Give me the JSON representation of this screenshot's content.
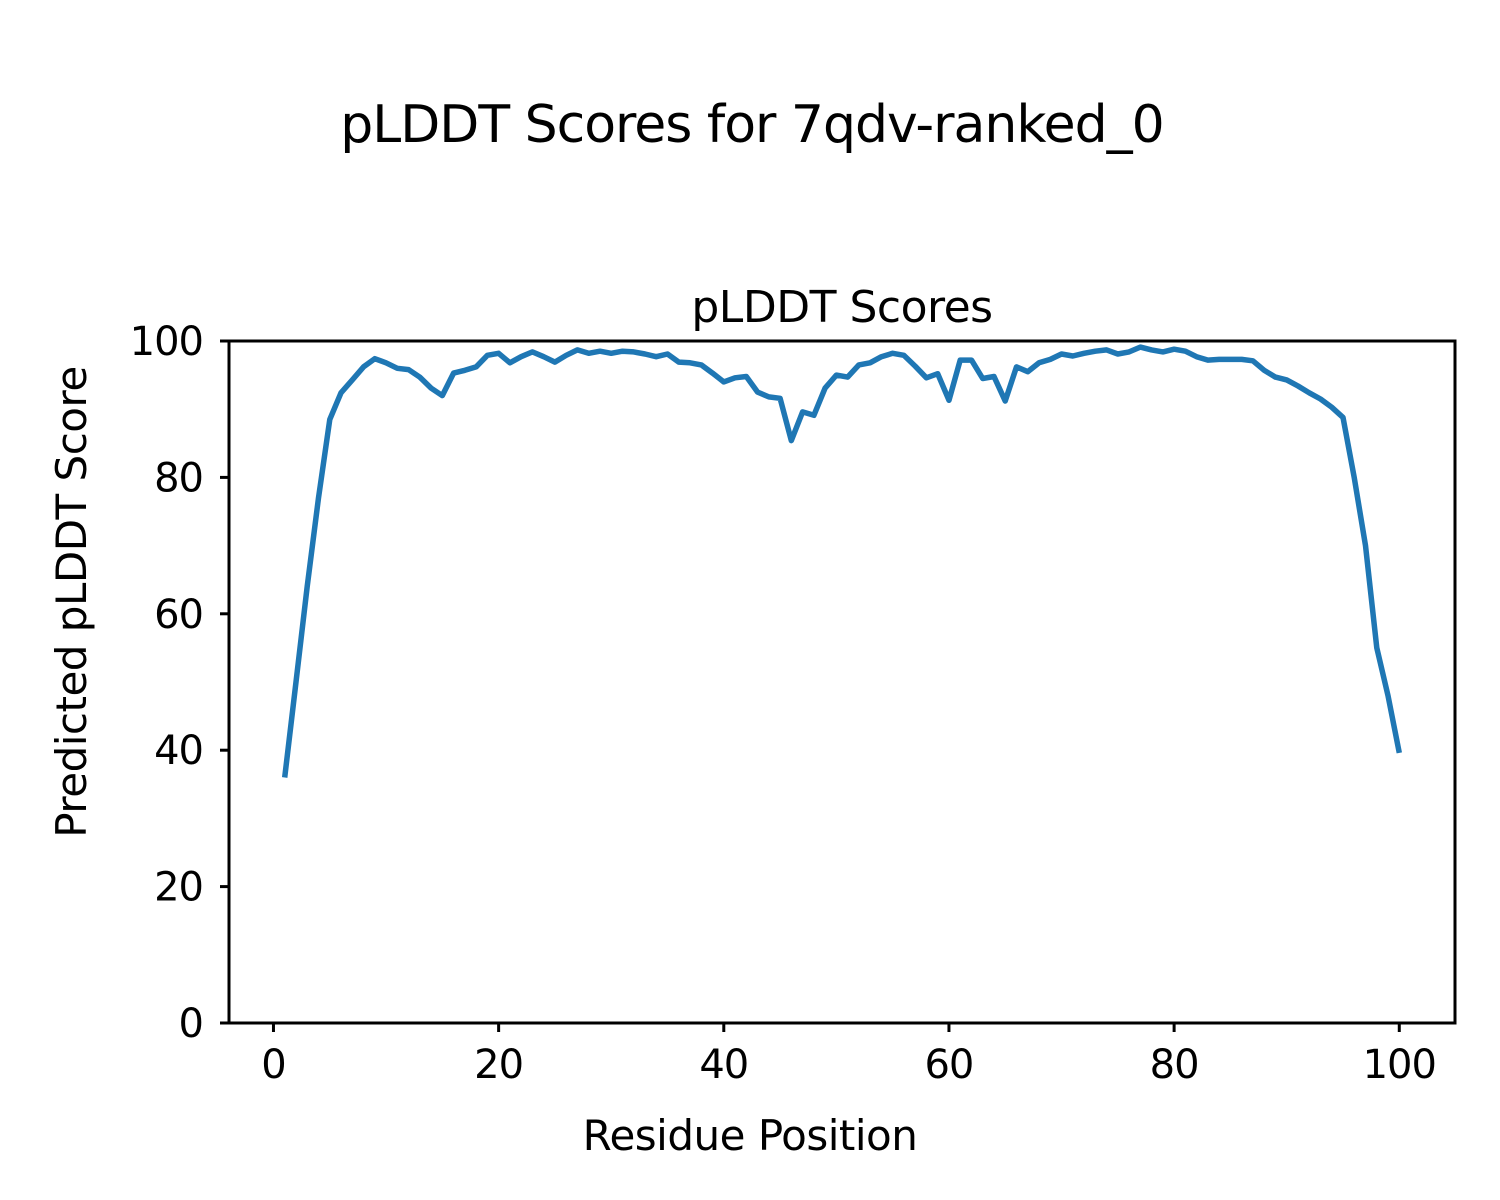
{
  "chart_data": {
    "type": "line",
    "suptitle": "pLDDT Scores for 7qdv-ranked_0",
    "title": "pLDDT Scores",
    "xlabel": "Residue Position",
    "ylabel": "Predicted pLDDT Score",
    "xlim": [
      -3.95,
      104.95
    ],
    "ylim": [
      0,
      100
    ],
    "xticks": [
      0,
      20,
      40,
      60,
      80,
      100
    ],
    "yticks": [
      0,
      20,
      40,
      60,
      80,
      100
    ],
    "grid": false,
    "legend": false,
    "line_color": "#1f77b4",
    "axis_color": "#000000",
    "background_color": "#ffffff",
    "series": [
      {
        "name": "pLDDT",
        "x": [
          1,
          2,
          3,
          4,
          5,
          6,
          7,
          8,
          9,
          10,
          11,
          12,
          13,
          14,
          15,
          16,
          17,
          18,
          19,
          20,
          21,
          22,
          23,
          24,
          25,
          26,
          27,
          28,
          29,
          30,
          31,
          32,
          33,
          34,
          35,
          36,
          37,
          38,
          39,
          40,
          41,
          42,
          43,
          44,
          45,
          46,
          47,
          48,
          49,
          50,
          51,
          52,
          53,
          54,
          55,
          56,
          57,
          58,
          59,
          60,
          61,
          62,
          63,
          64,
          65,
          66,
          67,
          68,
          69,
          70,
          71,
          72,
          73,
          74,
          75,
          76,
          77,
          78,
          79,
          80,
          81,
          82,
          83,
          84,
          85,
          86,
          87,
          88,
          89,
          90,
          91,
          92,
          93,
          94,
          95,
          96,
          97,
          98,
          99,
          100
        ],
        "y": [
          36.0,
          50.0,
          64.0,
          77.0,
          88.5,
          92.4,
          94.3,
          96.2,
          97.4,
          96.8,
          96.0,
          95.8,
          94.7,
          93.1,
          92.0,
          95.3,
          95.7,
          96.2,
          97.9,
          98.2,
          96.8,
          97.7,
          98.4,
          97.7,
          96.9,
          97.9,
          98.7,
          98.2,
          98.5,
          98.2,
          98.5,
          98.4,
          98.1,
          97.7,
          98.1,
          96.9,
          96.8,
          96.5,
          95.3,
          94.0,
          94.6,
          94.8,
          92.5,
          91.8,
          91.6,
          85.4,
          89.6,
          89.1,
          93.1,
          95.0,
          94.7,
          96.5,
          96.8,
          97.7,
          98.2,
          97.9,
          96.3,
          94.6,
          95.2,
          91.3,
          97.2,
          97.2,
          94.5,
          94.8,
          91.2,
          96.2,
          95.5,
          96.8,
          97.3,
          98.1,
          97.8,
          98.2,
          98.5,
          98.7,
          98.1,
          98.4,
          99.1,
          98.7,
          98.4,
          98.8,
          98.5,
          97.7,
          97.2,
          97.3,
          97.3,
          97.3,
          97.1,
          95.7,
          94.7,
          94.3,
          93.4,
          92.4,
          91.5,
          90.3,
          88.8,
          80.0,
          70.0,
          55.0,
          48.0,
          39.6
        ]
      }
    ]
  }
}
